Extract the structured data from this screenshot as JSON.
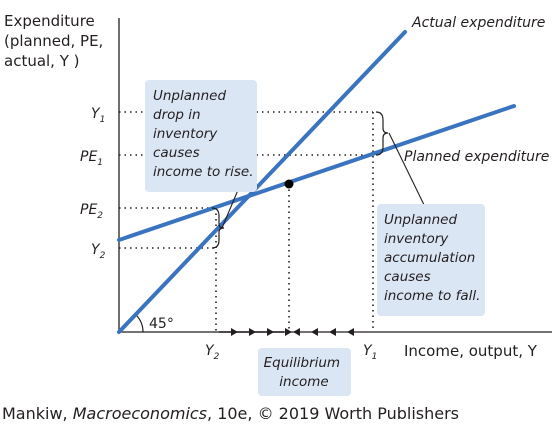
{
  "figure": {
    "y_axis_title": [
      "Expenditure",
      "(planned, PE,",
      "actual, Y )"
    ],
    "x_axis_title": "Income, output, Y",
    "y_ticks": [
      {
        "main": "Y",
        "sub": "1"
      },
      {
        "main": "PE",
        "sub": "1"
      },
      {
        "main": "PE",
        "sub": "2"
      },
      {
        "main": "Y",
        "sub": "2"
      }
    ],
    "x_ticks": [
      {
        "main": "Y",
        "sub": "2"
      },
      {
        "main": "Y",
        "sub": "1"
      }
    ],
    "angle_label": "45°",
    "actual_label": "Actual expenditure",
    "planned_label": "Planned expenditure",
    "box_left": [
      "Unplanned",
      "drop in",
      "inventory",
      "causes",
      "income to rise."
    ],
    "box_right": [
      "Unplanned",
      "inventory",
      "accumulation",
      "causes",
      "income to fall."
    ],
    "equilibrium": [
      "Equilibrium",
      "income"
    ],
    "colors": {
      "line": "#3a73c0",
      "box": "#dbe6f4",
      "text": "#231f20",
      "point": "#000000"
    }
  },
  "credit": {
    "author": "Mankiw, ",
    "title": "Macroeconomics",
    "rest": ", 10e, © 2019 Worth Publishers"
  }
}
